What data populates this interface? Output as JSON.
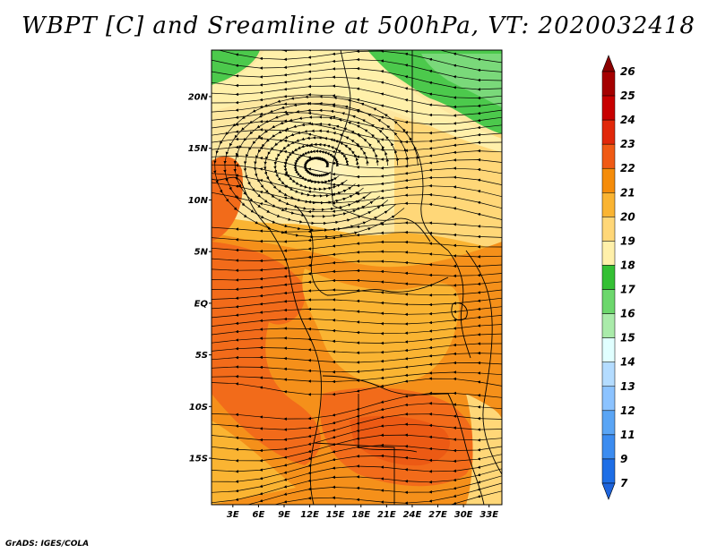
{
  "title": "WBPT [C] and Sreamline at 500hPa, VT: 2020032418",
  "credit": "GrADS: IGES/COLA",
  "lat_labels": [
    {
      "lat": 20,
      "text": "20N"
    },
    {
      "lat": 15,
      "text": "15N"
    },
    {
      "lat": 10,
      "text": "10N"
    },
    {
      "lat": 5,
      "text": "5N"
    },
    {
      "lat": 0,
      "text": "EQ"
    },
    {
      "lat": -5,
      "text": "5S"
    },
    {
      "lat": -10,
      "text": "10S"
    },
    {
      "lat": -15,
      "text": "15S"
    }
  ],
  "lon_labels": [
    {
      "lon": 3,
      "text": "3E"
    },
    {
      "lon": 6,
      "text": "6E"
    },
    {
      "lon": 9,
      "text": "9E"
    },
    {
      "lon": 12,
      "text": "12E"
    },
    {
      "lon": 15,
      "text": "15E"
    },
    {
      "lon": 18,
      "text": "18E"
    },
    {
      "lon": 21,
      "text": "21E"
    },
    {
      "lon": 24,
      "text": "24E"
    },
    {
      "lon": 27,
      "text": "27E"
    },
    {
      "lon": 30,
      "text": "30E"
    },
    {
      "lon": 33,
      "text": "33E"
    }
  ],
  "map_extent": {
    "lon_min": 0.5,
    "lon_max": 34.5,
    "lat_min": -19.5,
    "lat_max": 24.5
  },
  "colorbar": {
    "labels": [
      "26",
      "25",
      "24",
      "23",
      "22",
      "21",
      "20",
      "19",
      "18",
      "17",
      "16",
      "15",
      "14",
      "13",
      "12",
      "11",
      "9",
      "7"
    ],
    "colors": [
      "#a50000",
      "#c80000",
      "#e1280a",
      "#f05a14",
      "#f58c0a",
      "#fab432",
      "#ffd778",
      "#fff0aa",
      "#34c034",
      "#6cd76c",
      "#aaebaa",
      "#e1ffff",
      "#b4dcff",
      "#8cc3ff",
      "#5aa5f5",
      "#3c8cf0",
      "#1e6ee6"
    ]
  },
  "regions": [
    {
      "name": "green-north-west",
      "level": "17",
      "color": "#4cc94c"
    },
    {
      "name": "green-north-east",
      "level": "17",
      "color": "#4cc94c"
    },
    {
      "name": "cyclone-center",
      "level": "19",
      "color": "#fff0aa"
    },
    {
      "name": "warm-west-coast",
      "level": "23",
      "color": "#f26b1a"
    },
    {
      "name": "warm-south-central",
      "level": "23",
      "color": "#f26b1a"
    },
    {
      "name": "warm-east",
      "level": "22",
      "color": "#f5901a"
    }
  ]
}
